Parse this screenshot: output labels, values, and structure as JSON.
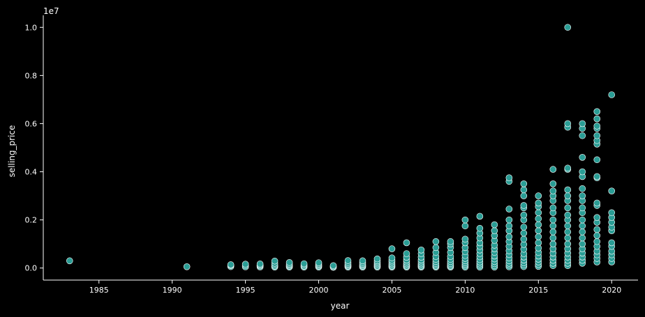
{
  "chart_data": {
    "type": "scatter",
    "title": "",
    "xlabel": "year",
    "ylabel": "selling_price",
    "y_offset_label": "1e7",
    "xlim": [
      1981.2,
      2021.8
    ],
    "ylim": [
      -500000,
      10500000
    ],
    "x_ticks": [
      1985,
      1990,
      1995,
      2000,
      2005,
      2010,
      2015,
      2020
    ],
    "x_tick_labels": [
      "1985",
      "1990",
      "1995",
      "2000",
      "2005",
      "2010",
      "2015",
      "2020"
    ],
    "y_ticks": [
      0,
      2000000,
      4000000,
      6000000,
      8000000,
      10000000
    ],
    "y_tick_labels": [
      "0.0",
      "0.2",
      "0.4",
      "0.6",
      "0.8",
      "1.0"
    ],
    "grid": false,
    "legend": "none",
    "colors": {
      "background": "#000000",
      "axis": "#ffffff",
      "marker_fill": "#2a9d95",
      "marker_edge": "#ffffff"
    },
    "points": [
      [
        1983,
        300000
      ],
      [
        1991,
        55000
      ],
      [
        1994,
        60000
      ],
      [
        1994,
        110000
      ],
      [
        1994,
        140000
      ],
      [
        1995,
        50000
      ],
      [
        1995,
        100000
      ],
      [
        1995,
        160000
      ],
      [
        1996,
        45000
      ],
      [
        1996,
        90000
      ],
      [
        1996,
        120000
      ],
      [
        1996,
        170000
      ],
      [
        1997,
        40000
      ],
      [
        1997,
        80000
      ],
      [
        1997,
        130000
      ],
      [
        1997,
        200000
      ],
      [
        1997,
        290000
      ],
      [
        1998,
        40000
      ],
      [
        1998,
        80000
      ],
      [
        1998,
        120000
      ],
      [
        1998,
        170000
      ],
      [
        1998,
        230000
      ],
      [
        1999,
        40000
      ],
      [
        1999,
        80000
      ],
      [
        1999,
        130000
      ],
      [
        1999,
        180000
      ],
      [
        2000,
        40000
      ],
      [
        2000,
        80000
      ],
      [
        2000,
        120000
      ],
      [
        2000,
        170000
      ],
      [
        2000,
        220000
      ],
      [
        2001,
        30000
      ],
      [
        2001,
        60000
      ],
      [
        2001,
        100000
      ],
      [
        2002,
        40000
      ],
      [
        2002,
        80000
      ],
      [
        2002,
        120000
      ],
      [
        2002,
        170000
      ],
      [
        2002,
        230000
      ],
      [
        2002,
        310000
      ],
      [
        2003,
        40000
      ],
      [
        2003,
        80000
      ],
      [
        2003,
        120000
      ],
      [
        2003,
        170000
      ],
      [
        2003,
        230000
      ],
      [
        2003,
        300000
      ],
      [
        2004,
        40000
      ],
      [
        2004,
        80000
      ],
      [
        2004,
        130000
      ],
      [
        2004,
        180000
      ],
      [
        2004,
        240000
      ],
      [
        2004,
        300000
      ],
      [
        2004,
        380000
      ],
      [
        2005,
        40000
      ],
      [
        2005,
        80000
      ],
      [
        2005,
        130000
      ],
      [
        2005,
        180000
      ],
      [
        2005,
        250000
      ],
      [
        2005,
        320000
      ],
      [
        2005,
        420000
      ],
      [
        2005,
        800000
      ],
      [
        2006,
        40000
      ],
      [
        2006,
        80000
      ],
      [
        2006,
        130000
      ],
      [
        2006,
        180000
      ],
      [
        2006,
        250000
      ],
      [
        2006,
        330000
      ],
      [
        2006,
        450000
      ],
      [
        2006,
        600000
      ],
      [
        2006,
        1050000
      ],
      [
        2007,
        40000
      ],
      [
        2007,
        80000
      ],
      [
        2007,
        130000
      ],
      [
        2007,
        180000
      ],
      [
        2007,
        250000
      ],
      [
        2007,
        330000
      ],
      [
        2007,
        450000
      ],
      [
        2007,
        600000
      ],
      [
        2007,
        750000
      ],
      [
        2008,
        40000
      ],
      [
        2008,
        80000
      ],
      [
        2008,
        130000
      ],
      [
        2008,
        190000
      ],
      [
        2008,
        270000
      ],
      [
        2008,
        360000
      ],
      [
        2008,
        480000
      ],
      [
        2008,
        650000
      ],
      [
        2008,
        850000
      ],
      [
        2008,
        1100000
      ],
      [
        2009,
        40000
      ],
      [
        2009,
        80000
      ],
      [
        2009,
        130000
      ],
      [
        2009,
        190000
      ],
      [
        2009,
        270000
      ],
      [
        2009,
        360000
      ],
      [
        2009,
        480000
      ],
      [
        2009,
        650000
      ],
      [
        2009,
        850000
      ],
      [
        2009,
        1000000
      ],
      [
        2009,
        1100000
      ],
      [
        2010,
        40000
      ],
      [
        2010,
        90000
      ],
      [
        2010,
        150000
      ],
      [
        2010,
        220000
      ],
      [
        2010,
        300000
      ],
      [
        2010,
        400000
      ],
      [
        2010,
        520000
      ],
      [
        2010,
        680000
      ],
      [
        2010,
        850000
      ],
      [
        2010,
        1050000
      ],
      [
        2010,
        1200000
      ],
      [
        2010,
        1750000
      ],
      [
        2010,
        2000000
      ],
      [
        2011,
        40000
      ],
      [
        2011,
        100000
      ],
      [
        2011,
        170000
      ],
      [
        2011,
        250000
      ],
      [
        2011,
        350000
      ],
      [
        2011,
        470000
      ],
      [
        2011,
        600000
      ],
      [
        2011,
        750000
      ],
      [
        2011,
        900000
      ],
      [
        2011,
        1050000
      ],
      [
        2011,
        1250000
      ],
      [
        2011,
        1450000
      ],
      [
        2011,
        1650000
      ],
      [
        2011,
        2150000
      ],
      [
        2012,
        40000
      ],
      [
        2012,
        100000
      ],
      [
        2012,
        180000
      ],
      [
        2012,
        270000
      ],
      [
        2012,
        380000
      ],
      [
        2012,
        500000
      ],
      [
        2012,
        650000
      ],
      [
        2012,
        800000
      ],
      [
        2012,
        950000
      ],
      [
        2012,
        1150000
      ],
      [
        2012,
        1350000
      ],
      [
        2012,
        1550000
      ],
      [
        2012,
        1800000
      ],
      [
        2013,
        50000
      ],
      [
        2013,
        120000
      ],
      [
        2013,
        200000
      ],
      [
        2013,
        300000
      ],
      [
        2013,
        420000
      ],
      [
        2013,
        560000
      ],
      [
        2013,
        720000
      ],
      [
        2013,
        900000
      ],
      [
        2013,
        1100000
      ],
      [
        2013,
        1300000
      ],
      [
        2013,
        1550000
      ],
      [
        2013,
        1750000
      ],
      [
        2013,
        2000000
      ],
      [
        2013,
        2450000
      ],
      [
        2013,
        3600000
      ],
      [
        2013,
        3750000
      ],
      [
        2014,
        60000
      ],
      [
        2014,
        130000
      ],
      [
        2014,
        220000
      ],
      [
        2014,
        330000
      ],
      [
        2014,
        460000
      ],
      [
        2014,
        600000
      ],
      [
        2014,
        780000
      ],
      [
        2014,
        980000
      ],
      [
        2014,
        1200000
      ],
      [
        2014,
        1450000
      ],
      [
        2014,
        1700000
      ],
      [
        2014,
        2000000
      ],
      [
        2014,
        2200000
      ],
      [
        2014,
        2500000
      ],
      [
        2014,
        2600000
      ],
      [
        2014,
        3000000
      ],
      [
        2014,
        3250000
      ],
      [
        2014,
        3500000
      ],
      [
        2015,
        70000
      ],
      [
        2015,
        150000
      ],
      [
        2015,
        250000
      ],
      [
        2015,
        370000
      ],
      [
        2015,
        500000
      ],
      [
        2015,
        650000
      ],
      [
        2015,
        830000
      ],
      [
        2015,
        1050000
      ],
      [
        2015,
        1300000
      ],
      [
        2015,
        1550000
      ],
      [
        2015,
        1800000
      ],
      [
        2015,
        2050000
      ],
      [
        2015,
        2300000
      ],
      [
        2015,
        2550000
      ],
      [
        2015,
        2700000
      ],
      [
        2015,
        3000000
      ],
      [
        2016,
        100000
      ],
      [
        2016,
        200000
      ],
      [
        2016,
        320000
      ],
      [
        2016,
        460000
      ],
      [
        2016,
        620000
      ],
      [
        2016,
        800000
      ],
      [
        2016,
        1000000
      ],
      [
        2016,
        1250000
      ],
      [
        2016,
        1500000
      ],
      [
        2016,
        1750000
      ],
      [
        2016,
        2000000
      ],
      [
        2016,
        2300000
      ],
      [
        2016,
        2500000
      ],
      [
        2016,
        2800000
      ],
      [
        2016,
        3000000
      ],
      [
        2016,
        3200000
      ],
      [
        2016,
        3500000
      ],
      [
        2016,
        4100000
      ],
      [
        2017,
        100000
      ],
      [
        2017,
        200000
      ],
      [
        2017,
        320000
      ],
      [
        2017,
        460000
      ],
      [
        2017,
        620000
      ],
      [
        2017,
        800000
      ],
      [
        2017,
        1000000
      ],
      [
        2017,
        1250000
      ],
      [
        2017,
        1500000
      ],
      [
        2017,
        1750000
      ],
      [
        2017,
        2000000
      ],
      [
        2017,
        2200000
      ],
      [
        2017,
        2500000
      ],
      [
        2017,
        2800000
      ],
      [
        2017,
        3000000
      ],
      [
        2017,
        3250000
      ],
      [
        2017,
        4100000
      ],
      [
        2017,
        4150000
      ],
      [
        2017,
        5850000
      ],
      [
        2017,
        6000000
      ],
      [
        2017,
        10000000
      ],
      [
        2018,
        200000
      ],
      [
        2018,
        320000
      ],
      [
        2018,
        460000
      ],
      [
        2018,
        620000
      ],
      [
        2018,
        800000
      ],
      [
        2018,
        1000000
      ],
      [
        2018,
        1250000
      ],
      [
        2018,
        1500000
      ],
      [
        2018,
        1750000
      ],
      [
        2018,
        2000000
      ],
      [
        2018,
        2300000
      ],
      [
        2018,
        2500000
      ],
      [
        2018,
        2800000
      ],
      [
        2018,
        3000000
      ],
      [
        2018,
        3300000
      ],
      [
        2018,
        3800000
      ],
      [
        2018,
        4000000
      ],
      [
        2018,
        4600000
      ],
      [
        2018,
        5500000
      ],
      [
        2018,
        5800000
      ],
      [
        2018,
        6000000
      ],
      [
        2019,
        250000
      ],
      [
        2019,
        400000
      ],
      [
        2019,
        550000
      ],
      [
        2019,
        700000
      ],
      [
        2019,
        900000
      ],
      [
        2019,
        1100000
      ],
      [
        2019,
        1350000
      ],
      [
        2019,
        1600000
      ],
      [
        2019,
        1900000
      ],
      [
        2019,
        2100000
      ],
      [
        2019,
        2600000
      ],
      [
        2019,
        2700000
      ],
      [
        2019,
        3750000
      ],
      [
        2019,
        3800000
      ],
      [
        2019,
        4500000
      ],
      [
        2019,
        5150000
      ],
      [
        2019,
        5300000
      ],
      [
        2019,
        5500000
      ],
      [
        2019,
        5800000
      ],
      [
        2019,
        5900000
      ],
      [
        2019,
        6200000
      ],
      [
        2019,
        6500000
      ],
      [
        2020,
        250000
      ],
      [
        2020,
        400000
      ],
      [
        2020,
        550000
      ],
      [
        2020,
        700000
      ],
      [
        2020,
        900000
      ],
      [
        2020,
        1050000
      ],
      [
        2020,
        1550000
      ],
      [
        2020,
        1700000
      ],
      [
        2020,
        1900000
      ],
      [
        2020,
        2100000
      ],
      [
        2020,
        2300000
      ],
      [
        2020,
        3200000
      ],
      [
        2020,
        7200000
      ]
    ]
  }
}
